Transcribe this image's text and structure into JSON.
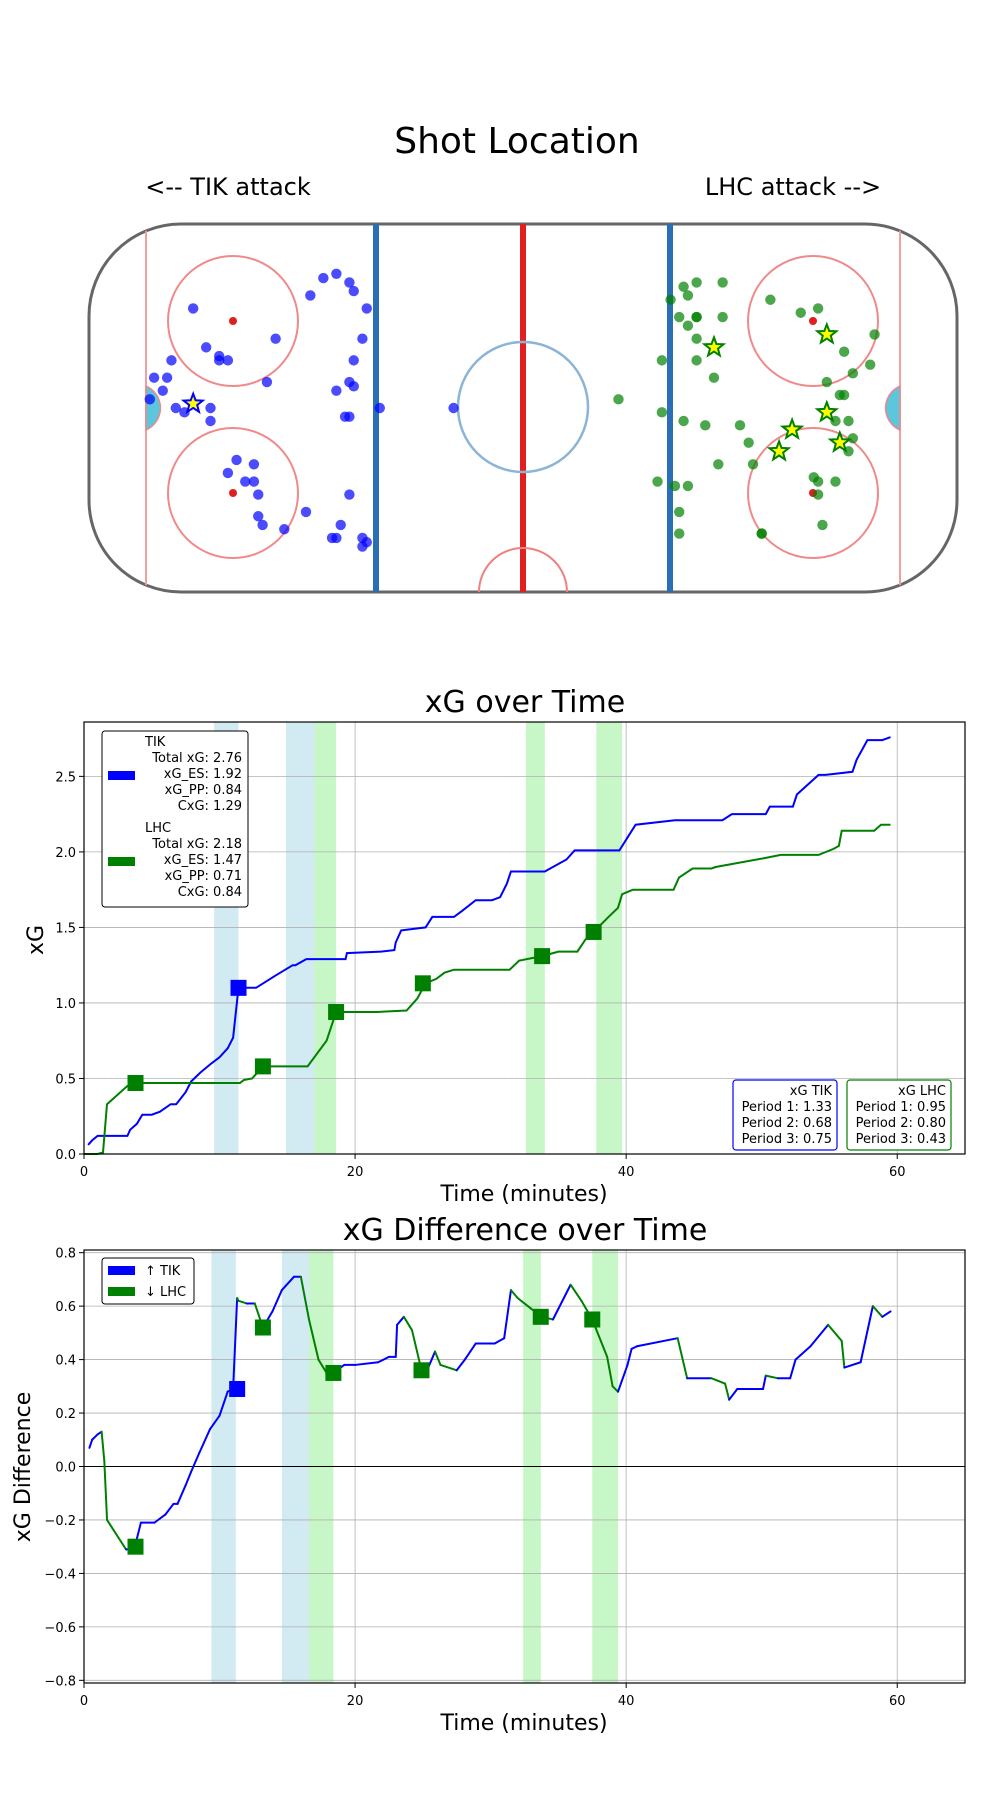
{
  "rink": {
    "title": "Shot Location",
    "left_label": "<-- TIK attack",
    "right_label": "LHC attack -->",
    "colors": {
      "tik": "#0000ff",
      "lhc": "#008000",
      "goal_star": "#ffff00"
    }
  },
  "chart_data": [
    {
      "type": "scatter",
      "title": "Shot Location",
      "xlabel": "",
      "ylabel": "",
      "xlim": [
        -100,
        100
      ],
      "ylim": [
        -42.5,
        42.5
      ],
      "series": [
        {
          "name": "TIK",
          "x": [
            -76,
            -81,
            -82,
            -85,
            -83,
            -86,
            -70,
            -73,
            -68,
            -70,
            -80,
            -78,
            -72,
            -72,
            -57,
            -59,
            -66,
            -68,
            -62,
            -61,
            -64,
            -62,
            -61,
            -60,
            -55,
            -50,
            -43,
            -37,
            -36,
            -37,
            -40,
            -42,
            -44,
            -41,
            -40,
            -43,
            -39,
            -40,
            -39,
            -37,
            -36,
            -39,
            -40,
            -43,
            -46,
            -49,
            -33,
            -16
          ],
          "y": [
            23,
            11,
            7,
            7,
            4,
            2,
            12,
            14,
            11,
            11,
            0,
            -1,
            0,
            -3,
            16,
            6,
            -12,
            -15,
            -13,
            -20,
            -17,
            -17,
            -25,
            -27,
            -28,
            -24,
            -30,
            -32,
            -31,
            -30,
            -20,
            -27,
            -30,
            -2,
            -2,
            4,
            5,
            6,
            11,
            16,
            23,
            27,
            29,
            31,
            30,
            26,
            0,
            0
          ],
          "goals": [
            [
              -76,
              1
            ]
          ]
        },
        {
          "name": "LHC",
          "x": [
            37,
            34,
            36,
            40,
            38,
            32,
            40,
            44,
            52,
            50,
            45,
            53,
            55,
            55,
            68,
            72,
            67,
            68,
            69,
            75,
            76,
            72,
            75,
            81,
            74,
            80,
            76,
            74,
            73,
            70,
            68,
            64,
            57,
            46,
            46,
            40,
            38,
            40,
            40,
            42,
            37,
            32,
            22,
            35,
            38,
            31,
            36,
            36
          ],
          "y": [
            28,
            25,
            21,
            21,
            19,
            11,
            11,
            7,
            -8,
            -4,
            -13,
            -13,
            -29,
            -29,
            -17,
            -17,
            -16,
            -20,
            -27,
            -10,
            -7,
            -3,
            -3,
            17,
            13,
            10,
            8,
            3,
            3,
            6,
            23,
            22,
            25,
            29,
            21,
            21,
            26,
            29,
            16,
            -4,
            -3,
            -1,
            2,
            -18,
            -18,
            -17,
            -29,
            -24
          ],
          "goals": [
            [
              44,
              14
            ],
            [
              70,
              17
            ],
            [
              70,
              -1
            ],
            [
              73,
              -8
            ],
            [
              62,
              -5
            ],
            [
              59,
              -10
            ]
          ]
        }
      ]
    },
    {
      "type": "line",
      "title": "xG over Time",
      "xlabel": "Time (minutes)",
      "ylabel": "xG",
      "xlim": [
        0,
        65
      ],
      "ylim": [
        0,
        2.86
      ],
      "xticks": [
        0,
        20,
        40,
        60
      ],
      "yticks": [
        0.0,
        0.5,
        1.0,
        1.5,
        2.0,
        2.5
      ],
      "grid": true,
      "penalties": [
        {
          "team": "TIK",
          "start": 9.6,
          "end": 11.4
        },
        {
          "team": "TIK",
          "start": 14.9,
          "end": 17.0
        },
        {
          "team": "LHC",
          "start": 17.0,
          "end": 18.6
        },
        {
          "team": "LHC",
          "start": 32.6,
          "end": 34.0
        },
        {
          "team": "LHC",
          "start": 37.8,
          "end": 39.7
        }
      ],
      "series": [
        {
          "name": "TIK",
          "x": [
            0.3,
            0.6,
            1.0,
            1.5,
            3.2,
            3.4,
            3.9,
            4.3,
            5.0,
            5.6,
            6.4,
            6.8,
            7.5,
            7.9,
            8.6,
            9.4,
            10.0,
            10.6,
            11.0,
            11.4,
            11.4,
            12.7,
            14.1,
            15.4,
            15.6,
            16.4,
            17.0,
            19.3,
            19.4,
            21.9,
            22.9,
            23.0,
            23.4,
            25.2,
            25.7,
            27.3,
            27.9,
            28.9,
            30.1,
            30.7,
            31.2,
            31.5,
            34.0,
            35.6,
            36.2,
            39.5,
            40.2,
            40.7,
            43.6,
            47.1,
            47.8,
            50.3,
            50.6,
            52.3,
            52.6,
            54.2,
            54.7,
            56.7,
            57.0,
            57.8,
            58.9,
            59.5
          ],
          "y": [
            0.06,
            0.09,
            0.12,
            0.12,
            0.12,
            0.16,
            0.2,
            0.26,
            0.26,
            0.28,
            0.33,
            0.33,
            0.41,
            0.48,
            0.54,
            0.6,
            0.64,
            0.7,
            0.77,
            1.1,
            1.1,
            1.1,
            1.18,
            1.25,
            1.25,
            1.29,
            1.29,
            1.29,
            1.33,
            1.34,
            1.35,
            1.4,
            1.48,
            1.5,
            1.57,
            1.57,
            1.61,
            1.68,
            1.68,
            1.7,
            1.79,
            1.87,
            1.87,
            1.95,
            2.01,
            2.01,
            2.11,
            2.18,
            2.21,
            2.21,
            2.25,
            2.25,
            2.3,
            2.3,
            2.38,
            2.51,
            2.51,
            2.53,
            2.61,
            2.74,
            2.74,
            2.76
          ],
          "markers": [
            [
              11.4,
              1.1
            ]
          ],
          "color": "#0000ff"
        },
        {
          "name": "LHC",
          "x": [
            0,
            1.0,
            1.4,
            1.7,
            3.2,
            3.8,
            11.5,
            11.8,
            12.4,
            13.2,
            16.5,
            17.9,
            18.6,
            21.6,
            23.8,
            24.6,
            25.2,
            26.0,
            26.6,
            27.3,
            29.0,
            31.4,
            32.1,
            33.8,
            35.0,
            36.4,
            37.0,
            37.6,
            38.7,
            39.4,
            39.7,
            40.5,
            43.5,
            43.9,
            44.9,
            46.3,
            46.6,
            50.3,
            51.4,
            54.2,
            55.3,
            55.7,
            55.9,
            57.1,
            58.3,
            58.8,
            59.5
          ],
          "y": [
            0,
            0,
            0.01,
            0.33,
            0.45,
            0.47,
            0.47,
            0.49,
            0.5,
            0.58,
            0.58,
            0.75,
            0.94,
            0.94,
            0.95,
            1.03,
            1.13,
            1.16,
            1.2,
            1.22,
            1.22,
            1.22,
            1.28,
            1.31,
            1.34,
            1.34,
            1.42,
            1.47,
            1.57,
            1.63,
            1.72,
            1.75,
            1.75,
            1.83,
            1.89,
            1.89,
            1.9,
            1.96,
            1.98,
            1.98,
            2.02,
            2.04,
            2.14,
            2.14,
            2.14,
            2.18,
            2.18
          ],
          "markers": [
            [
              3.8,
              0.47
            ],
            [
              13.2,
              0.58
            ],
            [
              18.6,
              0.94
            ],
            [
              25.0,
              1.13
            ],
            [
              33.8,
              1.31
            ],
            [
              37.6,
              1.47
            ]
          ],
          "color": "#008000"
        }
      ],
      "legend": {
        "tik": {
          "name": "TIK",
          "total": "Total xG: 2.76",
          "es": "xG_ES: 1.92",
          "pp": "xG_PP: 0.84",
          "cxg": "CxG: 1.29"
        },
        "lhc": {
          "name": "LHC",
          "total": "Total xG: 2.18",
          "es": "xG_ES: 1.47",
          "pp": "xG_PP: 0.71",
          "cxg": "CxG: 0.84"
        }
      },
      "period_boxes": {
        "tik": {
          "title": "xG TIK",
          "p1": "Period 1: 1.33",
          "p2": "Period 2: 0.68",
          "p3": "Period 3: 0.75"
        },
        "lhc": {
          "title": "xG LHC",
          "p1": "Period 1: 0.95",
          "p2": "Period 2: 0.80",
          "p3": "Period 3: 0.43"
        }
      }
    },
    {
      "type": "line",
      "title": "xG Difference over Time",
      "xlabel": "Time (minutes)",
      "ylabel": "xG Difference",
      "xlim": [
        0,
        65
      ],
      "ylim": [
        -0.81,
        0.81
      ],
      "xticks": [
        0,
        20,
        40,
        60
      ],
      "yticks": [
        -0.8,
        -0.6,
        -0.4,
        -0.2,
        0.0,
        0.2,
        0.4,
        0.6,
        0.8
      ],
      "grid": true,
      "penalties": [
        {
          "team": "TIK",
          "start": 9.4,
          "end": 11.2
        },
        {
          "team": "TIK",
          "start": 14.6,
          "end": 16.6
        },
        {
          "team": "LHC",
          "start": 16.6,
          "end": 18.4
        },
        {
          "team": "LHC",
          "start": 32.4,
          "end": 33.7
        },
        {
          "team": "LHC",
          "start": 37.5,
          "end": 39.4
        }
      ],
      "x": [
        0.4,
        0.6,
        1.0,
        1.3,
        1.5,
        1.7,
        3.1,
        3.7,
        4.2,
        5.2,
        6.0,
        6.6,
        6.9,
        7.5,
        7.9,
        8.5,
        9.3,
        10.0,
        10.6,
        11.0,
        11.3,
        11.4,
        12.0,
        12.6,
        13.2,
        13.9,
        14.6,
        15.5,
        16.0,
        16.6,
        17.3,
        17.9,
        18.4,
        19.2,
        20.0,
        21.7,
        22.5,
        23.0,
        23.1,
        23.6,
        24.2,
        24.9,
        25.4,
        25.9,
        26.3,
        27.5,
        28.1,
        28.9,
        30.3,
        31.0,
        31.5,
        32.0,
        33.0,
        33.8,
        34.6,
        35.9,
        36.7,
        37.5,
        38.6,
        39.0,
        39.4,
        40.1,
        40.4,
        40.8,
        43.8,
        44.5,
        46.3,
        46.8,
        47.3,
        47.6,
        48.2,
        50.1,
        50.3,
        51.2,
        52.1,
        52.5,
        53.6,
        54.9,
        55.9,
        56.1,
        57.3,
        58.2,
        58.9,
        59.5
      ],
      "y": [
        0.07,
        0.1,
        0.12,
        0.13,
        0.02,
        -0.2,
        -0.31,
        -0.31,
        -0.21,
        -0.21,
        -0.18,
        -0.14,
        -0.14,
        -0.07,
        -0.02,
        0.05,
        0.14,
        0.19,
        0.28,
        0.29,
        0.63,
        0.62,
        0.61,
        0.61,
        0.52,
        0.58,
        0.66,
        0.71,
        0.71,
        0.55,
        0.4,
        0.35,
        0.35,
        0.38,
        0.38,
        0.39,
        0.41,
        0.41,
        0.53,
        0.56,
        0.51,
        0.36,
        0.37,
        0.43,
        0.38,
        0.36,
        0.4,
        0.46,
        0.46,
        0.48,
        0.66,
        0.63,
        0.59,
        0.56,
        0.55,
        0.68,
        0.62,
        0.55,
        0.41,
        0.3,
        0.28,
        0.38,
        0.44,
        0.45,
        0.48,
        0.33,
        0.33,
        0.32,
        0.31,
        0.25,
        0.29,
        0.29,
        0.34,
        0.33,
        0.33,
        0.4,
        0.45,
        0.53,
        0.47,
        0.37,
        0.39,
        0.6,
        0.56,
        0.58
      ],
      "markers_tik": [
        [
          11.3,
          0.29
        ]
      ],
      "markers_lhc": [
        [
          3.8,
          -0.3
        ],
        [
          13.2,
          0.52
        ],
        [
          18.4,
          0.35
        ],
        [
          24.9,
          0.36
        ],
        [
          33.7,
          0.56
        ],
        [
          37.5,
          0.55
        ]
      ],
      "legend": {
        "tik": "↑ TIK",
        "lhc": "↓ LHC"
      }
    }
  ],
  "colors": {
    "tik_line": "#0000ff",
    "lhc_line": "#008000",
    "tik_pen": "#add8e6",
    "lhc_pen": "#90ee90",
    "grid": "#b0b0b0"
  }
}
